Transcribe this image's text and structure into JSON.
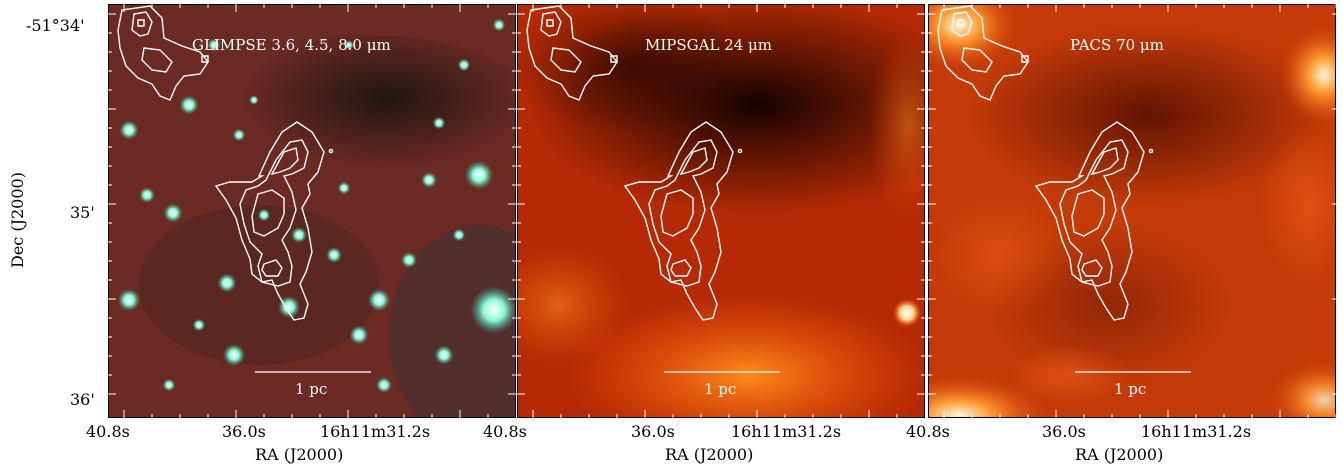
{
  "figure": {
    "y_axis_label": "Dec (J2000)",
    "y_ticks": [
      "-51°34'",
      "35'",
      "36'"
    ],
    "x_axis_label": "RA (J2000)",
    "x_ticks": [
      "40.8s",
      "36.0s",
      "16h11m31.2s"
    ],
    "scale_bar_label": "1 pc",
    "panels": [
      {
        "label": "GLIMPSE 3.6, 4.5, 8.0 μm",
        "colormap": "rgb-composite",
        "base_color": "#6b2a22"
      },
      {
        "label": "MIPSGAL 24 μm",
        "colormap": "red-hot",
        "base_color": "#b52a05"
      },
      {
        "label": "PACS 70 μm",
        "colormap": "red-hot",
        "base_color": "#c43a08"
      }
    ],
    "contour_color": "#ffffff"
  }
}
